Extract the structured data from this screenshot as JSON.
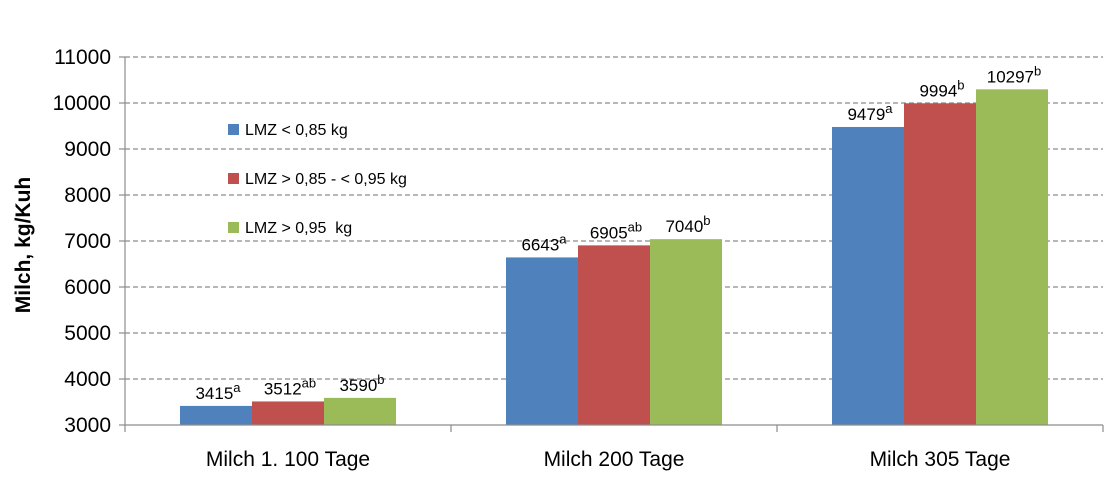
{
  "chart_data": {
    "type": "bar",
    "ylabel": "Milch, kg/Kuh",
    "xlabel": "",
    "ylim": [
      3000,
      11000
    ],
    "yticks": [
      3000,
      4000,
      5000,
      6000,
      7000,
      8000,
      9000,
      10000,
      11000
    ],
    "grid": "horizontal dashed",
    "legend_position": "top-left",
    "categories": [
      "Milch 1. 100 Tage",
      "Milch 200 Tage",
      "Milch 305 Tage"
    ],
    "series": [
      {
        "name": "LMZ < 0,85 kg",
        "color": "#4F81BD",
        "values": [
          3415,
          6643,
          9479
        ],
        "labels": [
          "3415",
          "6643",
          "9479"
        ],
        "superscripts": [
          "a",
          "a",
          "a"
        ]
      },
      {
        "name": "LMZ > 0,85 - < 0,95 kg",
        "color": "#C0504D",
        "values": [
          3512,
          6905,
          9994
        ],
        "labels": [
          "3512",
          "6905",
          "9994"
        ],
        "superscripts": [
          "ab",
          "ab",
          "b"
        ]
      },
      {
        "name": "LMZ > 0,95  kg",
        "color": "#9BBB59",
        "values": [
          3590,
          7040,
          10297
        ],
        "labels": [
          "3590",
          "7040",
          "10297"
        ],
        "superscripts": [
          "b",
          "b",
          "b"
        ]
      }
    ]
  }
}
